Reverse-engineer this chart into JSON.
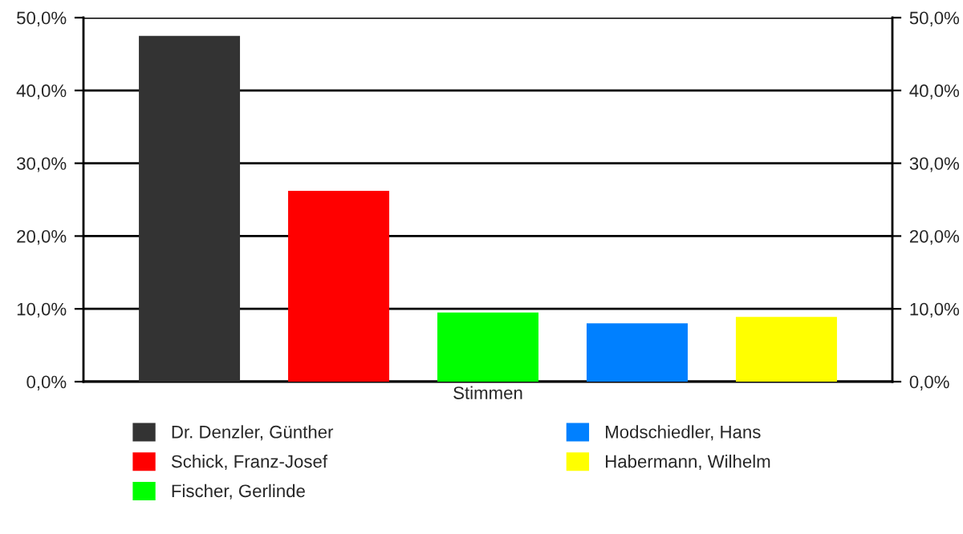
{
  "chart_data": {
    "type": "bar",
    "categories": [
      "Stimmen"
    ],
    "series": [
      {
        "name": "Dr. Denzler, Günther",
        "color": "#333333",
        "values": [
          47.5
        ]
      },
      {
        "name": "Schick, Franz-Josef",
        "color": "#ff0000",
        "values": [
          26.2
        ]
      },
      {
        "name": "Fischer, Gerlinde",
        "color": "#00ff00",
        "values": [
          9.5
        ]
      },
      {
        "name": "Modschiedler, Hans",
        "color": "#0080ff",
        "values": [
          8.0
        ]
      },
      {
        "name": "Habermann, Wilhelm",
        "color": "#ffff00",
        "values": [
          8.9
        ]
      }
    ],
    "ylim": [
      0,
      50
    ],
    "yticks": [
      {
        "value": 0,
        "label": "0,0%"
      },
      {
        "value": 10,
        "label": "10,0%"
      },
      {
        "value": 20,
        "label": "20,0%"
      },
      {
        "value": 30,
        "label": "30,0%"
      },
      {
        "value": 40,
        "label": "40,0%"
      },
      {
        "value": 50,
        "label": "50,0%"
      }
    ],
    "grid": "y",
    "legend": "bottom"
  }
}
